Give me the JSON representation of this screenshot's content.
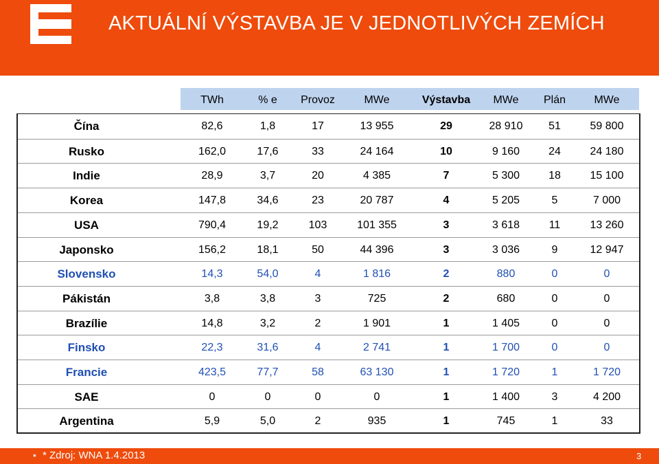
{
  "header": {
    "title": "AKTUÁLNÍ VÝSTAVBA JE V JEDNOTLIVÝCH ZEMÍCH",
    "brand_color": "#ee4b0c"
  },
  "table": {
    "columns": [
      "TWh",
      "% e",
      "Provoz",
      "MWe",
      "Výstavba",
      "MWe",
      "Plán",
      "MWe"
    ],
    "rows": [
      {
        "country": "Čína",
        "values": [
          "82,6",
          "1,8",
          "17",
          "13 955",
          "29",
          "28 910",
          "51",
          "59 800"
        ],
        "highlight": false
      },
      {
        "country": "Rusko",
        "values": [
          "162,0",
          "17,6",
          "33",
          "24 164",
          "10",
          "9 160",
          "24",
          "24 180"
        ],
        "highlight": false
      },
      {
        "country": "Indie",
        "values": [
          "28,9",
          "3,7",
          "20",
          "4 385",
          "7",
          "5 300",
          "18",
          "15 100"
        ],
        "highlight": false
      },
      {
        "country": "Korea",
        "values": [
          "147,8",
          "34,6",
          "23",
          "20 787",
          "4",
          "5 205",
          "5",
          "7 000"
        ],
        "highlight": false
      },
      {
        "country": "USA",
        "values": [
          "790,4",
          "19,2",
          "103",
          "101 355",
          "3",
          "3 618",
          "11",
          "13 260"
        ],
        "highlight": false
      },
      {
        "country": "Japonsko",
        "values": [
          "156,2",
          "18,1",
          "50",
          "44 396",
          "3",
          "3 036",
          "9",
          "12 947"
        ],
        "highlight": false
      },
      {
        "country": "Slovensko",
        "values": [
          "14,3",
          "54,0",
          "4",
          "1 816",
          "2",
          "880",
          "0",
          "0"
        ],
        "highlight": true
      },
      {
        "country": "Pákistán",
        "values": [
          "3,8",
          "3,8",
          "3",
          "725",
          "2",
          "680",
          "0",
          "0"
        ],
        "highlight": false
      },
      {
        "country": "Brazílie",
        "values": [
          "14,8",
          "3,2",
          "2",
          "1 901",
          "1",
          "1 405",
          "0",
          "0"
        ],
        "highlight": false
      },
      {
        "country": "Finsko",
        "values": [
          "22,3",
          "31,6",
          "4",
          "2 741",
          "1",
          "1 700",
          "0",
          "0"
        ],
        "highlight": true
      },
      {
        "country": "Francie",
        "values": [
          "423,5",
          "77,7",
          "58",
          "63 130",
          "1",
          "1 720",
          "1",
          "1 720"
        ],
        "highlight": true
      },
      {
        "country": "SAE",
        "values": [
          "0",
          "0",
          "0",
          "0",
          "1",
          "1 400",
          "3",
          "4 200"
        ],
        "highlight": false
      },
      {
        "country": "Argentina",
        "values": [
          "5,9",
          "5,0",
          "2",
          "935",
          "1",
          "745",
          "1",
          "33"
        ],
        "highlight": false
      }
    ],
    "highlight_color": "#1f4fb4",
    "header_bg_color": "#bed3ee"
  },
  "footer": {
    "source": "* Zdroj: WNA 1.4.2013",
    "page_number": "3"
  }
}
